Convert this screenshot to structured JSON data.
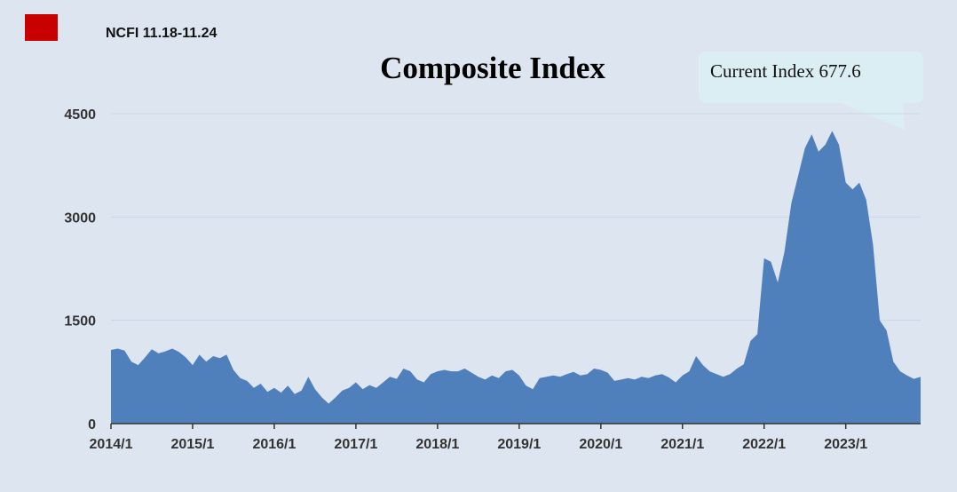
{
  "header": {
    "subtitle": "NCFI 11.18-11.24",
    "title": "Composite Index",
    "callout": "Current Index 677.6",
    "logo_color": "#c80000"
  },
  "chart_data": {
    "type": "area",
    "title": "Composite Index",
    "xlabel": "",
    "ylabel": "",
    "ylim": [
      0,
      4500
    ],
    "yticks": [
      0,
      1500,
      3000,
      4500
    ],
    "xticks": [
      "2014/1",
      "2015/1",
      "2016/1",
      "2017/1",
      "2018/1",
      "2019/1",
      "2020/1",
      "2021/1",
      "2022/1",
      "2023/1"
    ],
    "xlim": [
      "2014/1",
      "2023/12"
    ],
    "grid": true,
    "color": "#4f80bb",
    "current_value": 677.6,
    "series": [
      {
        "values": [
          [
            "2014/1",
            1070
          ],
          [
            "2014/2",
            1090
          ],
          [
            "2014/3",
            1060
          ],
          [
            "2014/4",
            900
          ],
          [
            "2014/5",
            850
          ],
          [
            "2014/6",
            960
          ],
          [
            "2014/7",
            1080
          ],
          [
            "2014/8",
            1020
          ],
          [
            "2014/9",
            1050
          ],
          [
            "2014/10",
            1090
          ],
          [
            "2014/11",
            1040
          ],
          [
            "2014/12",
            960
          ],
          [
            "2015/1",
            850
          ],
          [
            "2015/2",
            1000
          ],
          [
            "2015/3",
            900
          ],
          [
            "2015/4",
            980
          ],
          [
            "2015/5",
            950
          ],
          [
            "2015/6",
            1000
          ],
          [
            "2015/7",
            780
          ],
          [
            "2015/8",
            660
          ],
          [
            "2015/9",
            620
          ],
          [
            "2015/10",
            520
          ],
          [
            "2015/11",
            580
          ],
          [
            "2015/12",
            460
          ],
          [
            "2016/1",
            520
          ],
          [
            "2016/2",
            450
          ],
          [
            "2016/3",
            550
          ],
          [
            "2016/4",
            430
          ],
          [
            "2016/5",
            480
          ],
          [
            "2016/6",
            680
          ],
          [
            "2016/7",
            500
          ],
          [
            "2016/8",
            380
          ],
          [
            "2016/9",
            290
          ],
          [
            "2016/10",
            380
          ],
          [
            "2016/11",
            480
          ],
          [
            "2016/12",
            520
          ],
          [
            "2017/1",
            600
          ],
          [
            "2017/2",
            500
          ],
          [
            "2017/3",
            560
          ],
          [
            "2017/4",
            520
          ],
          [
            "2017/5",
            600
          ],
          [
            "2017/6",
            680
          ],
          [
            "2017/7",
            650
          ],
          [
            "2017/8",
            800
          ],
          [
            "2017/9",
            760
          ],
          [
            "2017/10",
            640
          ],
          [
            "2017/11",
            600
          ],
          [
            "2017/12",
            720
          ],
          [
            "2018/1",
            760
          ],
          [
            "2018/2",
            780
          ],
          [
            "2018/3",
            760
          ],
          [
            "2018/4",
            760
          ],
          [
            "2018/5",
            800
          ],
          [
            "2018/6",
            740
          ],
          [
            "2018/7",
            680
          ],
          [
            "2018/8",
            640
          ],
          [
            "2018/9",
            700
          ],
          [
            "2018/10",
            660
          ],
          [
            "2018/11",
            760
          ],
          [
            "2018/12",
            780
          ],
          [
            "2019/1",
            700
          ],
          [
            "2019/2",
            550
          ],
          [
            "2019/3",
            500
          ],
          [
            "2019/4",
            660
          ],
          [
            "2019/5",
            680
          ],
          [
            "2019/6",
            700
          ],
          [
            "2019/7",
            680
          ],
          [
            "2019/8",
            720
          ],
          [
            "2019/9",
            750
          ],
          [
            "2019/10",
            700
          ],
          [
            "2019/11",
            720
          ],
          [
            "2019/12",
            800
          ],
          [
            "2020/1",
            780
          ],
          [
            "2020/2",
            740
          ],
          [
            "2020/3",
            620
          ],
          [
            "2020/4",
            640
          ],
          [
            "2020/5",
            660
          ],
          [
            "2020/6",
            640
          ],
          [
            "2020/7",
            680
          ],
          [
            "2020/8",
            660
          ],
          [
            "2020/9",
            700
          ],
          [
            "2020/10",
            720
          ],
          [
            "2020/11",
            670
          ],
          [
            "2020/12",
            600
          ],
          [
            "2021/1",
            700
          ],
          [
            "2021/2",
            760
          ],
          [
            "2021/3",
            980
          ],
          [
            "2021/4",
            850
          ],
          [
            "2021/5",
            760
          ],
          [
            "2021/6",
            720
          ],
          [
            "2021/7",
            680
          ],
          [
            "2021/8",
            720
          ],
          [
            "2021/9",
            800
          ],
          [
            "2021/10",
            860
          ],
          [
            "2021/11",
            1200
          ],
          [
            "2021/12",
            1300
          ],
          [
            "2022/1",
            2400
          ],
          [
            "2022/2",
            2350
          ],
          [
            "2022/3",
            2050
          ],
          [
            "2022/4",
            2500
          ],
          [
            "2022/5",
            3200
          ],
          [
            "2022/6",
            3600
          ],
          [
            "2022/7",
            4000
          ],
          [
            "2022/8",
            4200
          ],
          [
            "2022/9",
            3950
          ],
          [
            "2022/10",
            4050
          ],
          [
            "2022/11",
            4250
          ],
          [
            "2022/12",
            4050
          ],
          [
            "2023/1",
            3500
          ],
          [
            "2023/2",
            3400
          ],
          [
            "2023/3",
            3500
          ],
          [
            "2023/4",
            3250
          ],
          [
            "2023/5",
            2600
          ],
          [
            "2023/6",
            1500
          ],
          [
            "2023/7",
            1350
          ],
          [
            "2023/8",
            900
          ],
          [
            "2023/9",
            760
          ],
          [
            "2023/10",
            700
          ],
          [
            "2023/11",
            650
          ],
          [
            "2023/12",
            677.6
          ]
        ]
      }
    ]
  }
}
